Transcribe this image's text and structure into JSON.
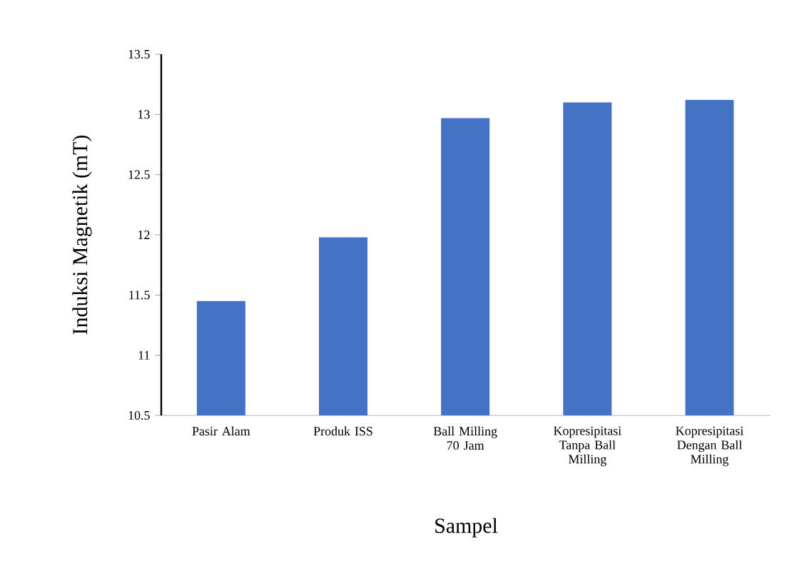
{
  "chart_data": {
    "type": "bar",
    "xlabel": "Sampel",
    "ylabel": "Induksi Magnetik (mT)",
    "categories": [
      "Pasir Alam",
      "Produk ISS",
      "Ball Milling 70 Jam",
      "Kopresipitasi Tanpa Ball Milling",
      "Kopresipitasi Dengan Ball Milling"
    ],
    "values": [
      11.45,
      11.98,
      12.97,
      13.1,
      13.12
    ],
    "color": "#4472c4",
    "ylim": [
      10.5,
      13.5
    ],
    "yticks": [
      10.5,
      11,
      11.5,
      12,
      12.5,
      13,
      13.5
    ],
    "grid": false
  }
}
